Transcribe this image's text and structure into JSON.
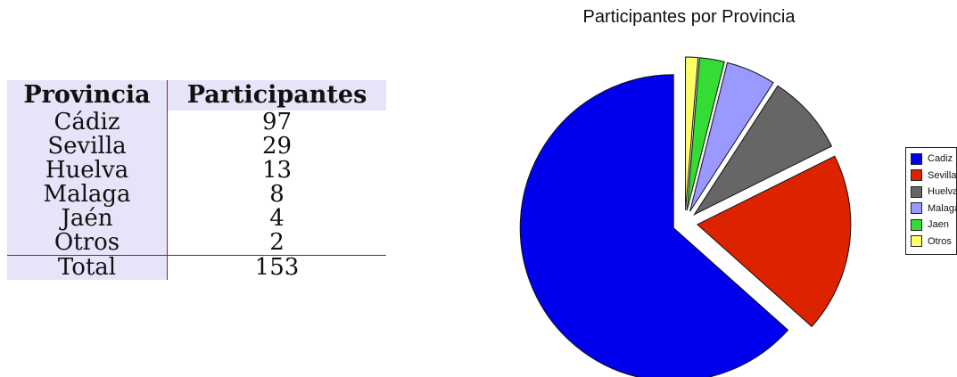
{
  "table": {
    "headers": [
      "Provincia",
      "Participantes"
    ],
    "rows": [
      {
        "name": "Cádiz",
        "value": "97"
      },
      {
        "name": "Sevilla",
        "value": "29"
      },
      {
        "name": "Huelva",
        "value": "13"
      },
      {
        "name": "Malaga",
        "value": "8"
      },
      {
        "name": "Jaén",
        "value": "4"
      },
      {
        "name": "Otros",
        "value": "2"
      }
    ],
    "total": {
      "name": "Total",
      "value": "153"
    }
  },
  "chart_data": {
    "type": "pie",
    "title": "Participantes por Provincia",
    "categories": [
      "Cadiz",
      "Sevilla",
      "Huelva",
      "Malaga",
      "Jaen",
      "Otros"
    ],
    "values": [
      97,
      29,
      13,
      8,
      4,
      2
    ],
    "colors": [
      "#0000ee",
      "#dd2200",
      "#666666",
      "#9999ff",
      "#33dd33",
      "#ffff66"
    ],
    "exploded": true,
    "legend": "right"
  }
}
